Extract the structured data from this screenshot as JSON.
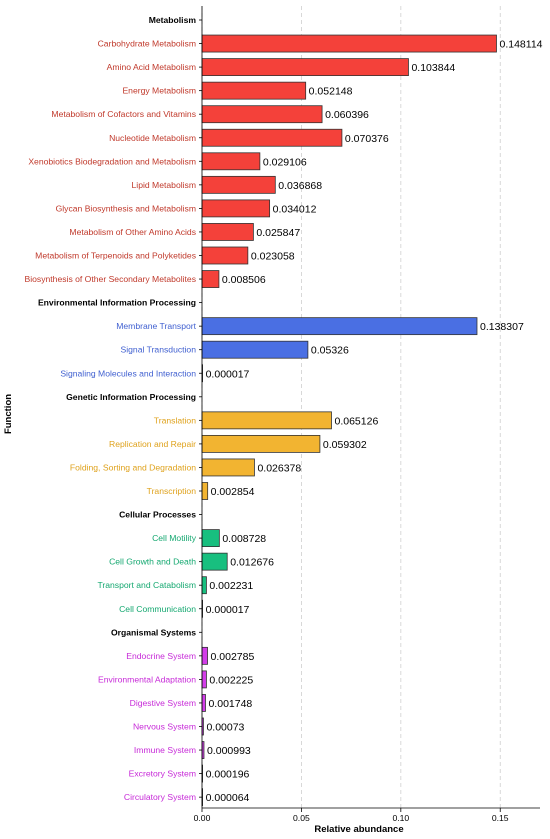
{
  "chart_data": {
    "type": "bar",
    "orientation": "horizontal",
    "xlabel": "Relative abundance",
    "ylabel": "Function",
    "xlim": [
      0,
      0.17
    ],
    "xticks": [
      "0.00",
      "0.05",
      "0.10",
      "0.15"
    ],
    "grid": "vertical dashed",
    "colors": {
      "Metabolism": "#f4413a",
      "Environmental Information Processing": "#4a6fe3",
      "Genetic Information Processing": "#f2b431",
      "Cellular Processes": "#18bf7f",
      "Organismal Systems": "#d23ee8"
    },
    "label_colors": {
      "Metabolism": "#c0392b",
      "Environmental Information Processing": "#3f5fd0",
      "Genetic Information Processing": "#dfa21c",
      "Cellular Processes": "#14a870",
      "Organismal Systems": "#c72ad8"
    },
    "rows": [
      {
        "kind": "group",
        "label": "Metabolism"
      },
      {
        "kind": "bar",
        "group": "Metabolism",
        "label": "Carbohydrate Metabolism",
        "value": 0.148114,
        "text": "0.148114"
      },
      {
        "kind": "bar",
        "group": "Metabolism",
        "label": "Amino Acid Metabolism",
        "value": 0.103844,
        "text": "0.103844"
      },
      {
        "kind": "bar",
        "group": "Metabolism",
        "label": "Energy Metabolism",
        "value": 0.052148,
        "text": "0.052148"
      },
      {
        "kind": "bar",
        "group": "Metabolism",
        "label": "Metabolism of Cofactors and Vitamins",
        "value": 0.060396,
        "text": "0.060396"
      },
      {
        "kind": "bar",
        "group": "Metabolism",
        "label": "Nucleotide Metabolism",
        "value": 0.070376,
        "text": "0.070376"
      },
      {
        "kind": "bar",
        "group": "Metabolism",
        "label": "Xenobiotics Biodegradation and Metabolism",
        "value": 0.029106,
        "text": "0.029106"
      },
      {
        "kind": "bar",
        "group": "Metabolism",
        "label": "Lipid Metabolism",
        "value": 0.036868,
        "text": "0.036868"
      },
      {
        "kind": "bar",
        "group": "Metabolism",
        "label": "Glycan Biosynthesis and Metabolism",
        "value": 0.034012,
        "text": "0.034012"
      },
      {
        "kind": "bar",
        "group": "Metabolism",
        "label": "Metabolism of Other Amino Acids",
        "value": 0.025847,
        "text": "0.025847"
      },
      {
        "kind": "bar",
        "group": "Metabolism",
        "label": "Metabolism of Terpenoids and Polyketides",
        "value": 0.023058,
        "text": "0.023058"
      },
      {
        "kind": "bar",
        "group": "Metabolism",
        "label": "Biosynthesis of Other Secondary Metabolites",
        "value": 0.008506,
        "text": "0.008506"
      },
      {
        "kind": "group",
        "label": "Environmental Information Processing"
      },
      {
        "kind": "bar",
        "group": "Environmental Information Processing",
        "label": "Membrane Transport",
        "value": 0.138307,
        "text": "0.138307"
      },
      {
        "kind": "bar",
        "group": "Environmental Information Processing",
        "label": "Signal Transduction",
        "value": 0.05326,
        "text": "0.05326"
      },
      {
        "kind": "bar",
        "group": "Environmental Information Processing",
        "label": "Signaling Molecules and Interaction",
        "value": 1.7e-05,
        "text": "0.000017"
      },
      {
        "kind": "group",
        "label": "Genetic Information Processing"
      },
      {
        "kind": "bar",
        "group": "Genetic Information Processing",
        "label": "Translation",
        "value": 0.065126,
        "text": "0.065126"
      },
      {
        "kind": "bar",
        "group": "Genetic Information Processing",
        "label": "Replication and Repair",
        "value": 0.059302,
        "text": "0.059302"
      },
      {
        "kind": "bar",
        "group": "Genetic Information Processing",
        "label": "Folding, Sorting and Degradation",
        "value": 0.026378,
        "text": "0.026378"
      },
      {
        "kind": "bar",
        "group": "Genetic Information Processing",
        "label": "Transcription",
        "value": 0.002854,
        "text": "0.002854"
      },
      {
        "kind": "group",
        "label": "Cellular Processes"
      },
      {
        "kind": "bar",
        "group": "Cellular Processes",
        "label": "Cell Motility",
        "value": 0.008728,
        "text": "0.008728"
      },
      {
        "kind": "bar",
        "group": "Cellular Processes",
        "label": "Cell Growth and Death",
        "value": 0.012676,
        "text": "0.012676"
      },
      {
        "kind": "bar",
        "group": "Cellular Processes",
        "label": "Transport and Catabolism",
        "value": 0.002231,
        "text": "0.002231"
      },
      {
        "kind": "bar",
        "group": "Cellular Processes",
        "label": "Cell Communication",
        "value": 1.7e-05,
        "text": "0.000017"
      },
      {
        "kind": "group",
        "label": "Organismal Systems"
      },
      {
        "kind": "bar",
        "group": "Organismal Systems",
        "label": "Endocrine System",
        "value": 0.002785,
        "text": "0.002785"
      },
      {
        "kind": "bar",
        "group": "Organismal Systems",
        "label": "Environmental Adaptation",
        "value": 0.002225,
        "text": "0.002225"
      },
      {
        "kind": "bar",
        "group": "Organismal Systems",
        "label": "Digestive System",
        "value": 0.001748,
        "text": "0.001748"
      },
      {
        "kind": "bar",
        "group": "Organismal Systems",
        "label": "Nervous System",
        "value": 0.00073,
        "text": "0.00073"
      },
      {
        "kind": "bar",
        "group": "Organismal Systems",
        "label": "Immune System",
        "value": 0.000993,
        "text": "0.000993"
      },
      {
        "kind": "bar",
        "group": "Organismal Systems",
        "label": "Excretory System",
        "value": 0.000196,
        "text": "0.000196"
      },
      {
        "kind": "bar",
        "group": "Organismal Systems",
        "label": "Circulatory System",
        "value": 6.4e-05,
        "text": "0.000064"
      }
    ]
  }
}
